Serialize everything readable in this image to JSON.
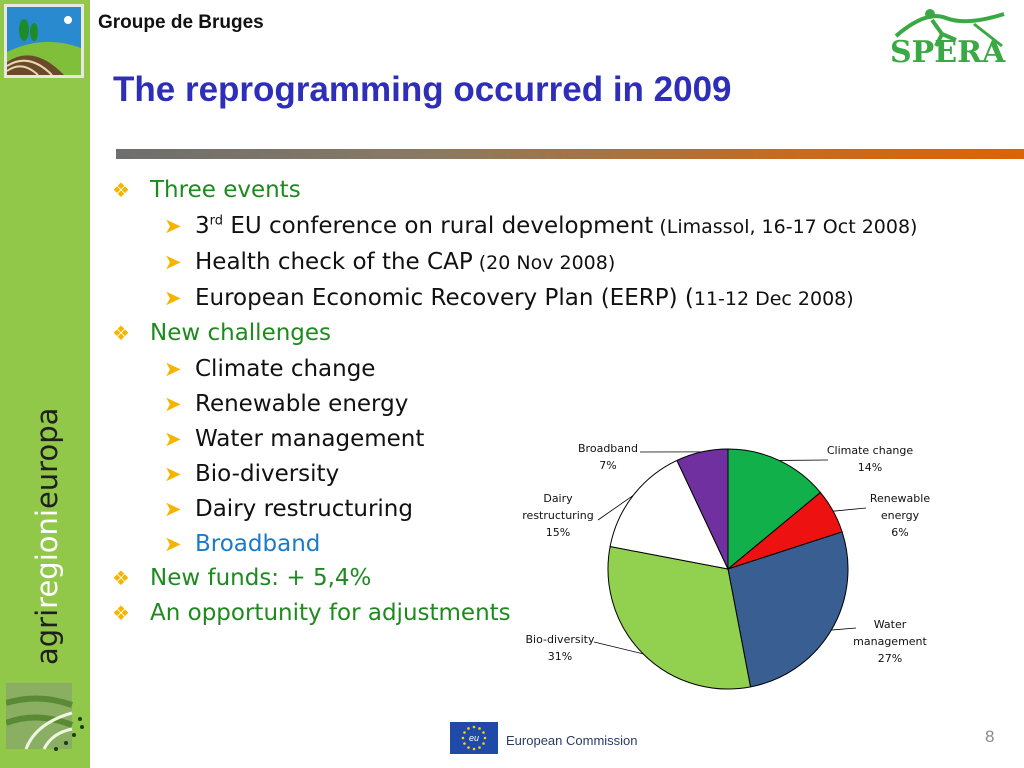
{
  "header": {
    "group_name": "Groupe de Bruges",
    "title": "The reprogramming occurred in 2009",
    "partner_logo_text": "SPERA"
  },
  "sidebar": {
    "brand_parts": [
      "agri",
      "regioni",
      "europa"
    ]
  },
  "content": {
    "events_heading": "Three events",
    "events": [
      {
        "main_pre": "3",
        "main_sup": "rd",
        "main_post": " EU conference on rural development",
        "detail": " (Limassol, 16-17 Oct 2008)"
      },
      {
        "main": "Health check of the CAP",
        "detail": " (20 Nov 2008)"
      },
      {
        "main": "European Economic Recovery Plan (EERP) (",
        "detail": "11-12 Dec 2008)"
      }
    ],
    "challenges_heading": "New challenges",
    "challenges": [
      "Climate change",
      "Renewable energy",
      "Water management",
      "Bio-diversity",
      "Dairy restructuring",
      "Broadband"
    ],
    "funds": "New funds: + 5,4%",
    "opportunity": "An opportunity for adjustments"
  },
  "chart_data": {
    "type": "pie",
    "title": "",
    "slices": [
      {
        "label": "Climate change",
        "value": 14,
        "pct": "14%",
        "color": "#12b04a",
        "label_lines": [
          "Climate change",
          "14%"
        ]
      },
      {
        "label": "Renewable energy",
        "value": 6,
        "pct": "6%",
        "color": "#ee1111",
        "label_lines": [
          "Renewable",
          "energy",
          "6%"
        ]
      },
      {
        "label": "Water management",
        "value": 27,
        "pct": "27%",
        "color": "#385e92",
        "label_lines": [
          "Water",
          "management",
          "27%"
        ]
      },
      {
        "label": "Bio-diversity",
        "value": 31,
        "pct": "31%",
        "color": "#92d050",
        "label_lines": [
          "Bio-diversity",
          "31%"
        ]
      },
      {
        "label": "Dairy restructuring",
        "value": 15,
        "pct": "15%",
        "color": "#ffffff",
        "label_lines": [
          "Dairy",
          "restructuring",
          "15%"
        ]
      },
      {
        "label": "Broadband",
        "value": 7,
        "pct": "7%",
        "color": "#7030a0",
        "label_lines": [
          "Broadband",
          "7%"
        ]
      }
    ]
  },
  "footer": {
    "flag_text": "eu",
    "commission": "European Commission",
    "page_number": "8"
  }
}
